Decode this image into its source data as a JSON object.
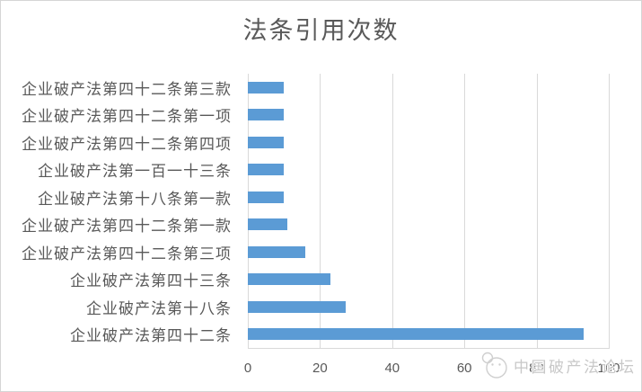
{
  "chart_data": {
    "type": "bar",
    "orientation": "horizontal",
    "title": "法条引用次数",
    "categories": [
      "企业破产法第四十二条第三款",
      "企业破产法第四十二条第一项",
      "企业破产法第四十二条第四项",
      "企业破产法第一百一十三条",
      "企业破产法第十八条第一款",
      "企业破产法第四十二条第一款",
      "企业破产法第四十二条第三项",
      "企业破产法第四十三条",
      "企业破产法第十八条",
      "企业破产法第四十二条"
    ],
    "values": [
      10,
      10,
      10,
      10,
      10,
      11,
      16,
      23,
      27,
      93
    ],
    "xlabel": "",
    "ylabel": "",
    "xlim": [
      0,
      100
    ],
    "x_ticks": [
      0,
      20,
      40,
      60,
      80,
      100
    ],
    "grid": "vertical-on",
    "legend": "none",
    "bar_color": "#5b9bd5",
    "gridline_color": "#d9d9d9",
    "text_color": "#595959"
  },
  "watermark": {
    "text": "中国破产法论坛",
    "logo": "overlapping-circles-logo",
    "color": "#c8c8c8"
  }
}
